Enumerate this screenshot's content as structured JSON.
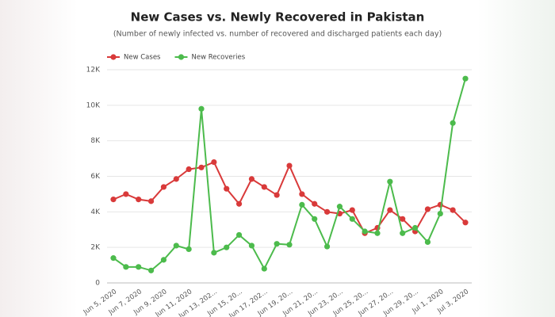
{
  "chart_data": {
    "type": "line",
    "title": "New Cases vs. Newly Recovered in Pakistan",
    "subtitle": "(Number of newly infected vs. number of recovered and discharged patients each day)",
    "categories": [
      "Jun 5, 2020",
      null,
      "Jun 7, 2020",
      null,
      "Jun 9, 2020",
      null,
      "Jun 11, 2020",
      null,
      "Jun 13, 202...",
      null,
      "Jun 15, 20...",
      null,
      "Jun 17, 202...",
      null,
      "Jun 19, 20...",
      null,
      "Jun 21, 20...",
      null,
      "Jun 23, 20...",
      null,
      "Jun 25, 20...",
      null,
      "Jun 27, 20...",
      null,
      "Jun 29, 20...",
      null,
      "Jul 1, 2020",
      null,
      "Jul 3, 2020"
    ],
    "series": [
      {
        "name": "New Cases",
        "color": "#d93a3a",
        "values": [
          4700,
          5000,
          4700,
          4600,
          5400,
          5850,
          6400,
          6500,
          6800,
          5300,
          4450,
          5850,
          5400,
          4950,
          6600,
          5000,
          4450,
          4000,
          3900,
          4100,
          2800,
          3100,
          4100,
          3600,
          2900,
          4150,
          4400,
          4100,
          3400
        ]
      },
      {
        "name": "New Recoveries",
        "color": "#4cbb4c",
        "values": [
          1400,
          900,
          900,
          700,
          1300,
          2100,
          1900,
          9800,
          1700,
          2000,
          2700,
          2100,
          800,
          2200,
          2150,
          4400,
          3600,
          2050,
          4300,
          3600,
          2900,
          2800,
          5700,
          2800,
          3100,
          2300,
          3900,
          9000,
          11500
        ]
      }
    ],
    "ylim": [
      0,
      12000
    ],
    "yticks": [
      0,
      {
        "value": 2000,
        "label": "2K"
      },
      {
        "value": 4000,
        "label": "4K"
      },
      {
        "value": 6000,
        "label": "6K"
      },
      {
        "value": 8000,
        "label": "8K"
      },
      {
        "value": 10000,
        "label": "10K"
      },
      {
        "value": 12000,
        "label": "12K"
      }
    ],
    "grid": true,
    "legend": "top-left"
  }
}
